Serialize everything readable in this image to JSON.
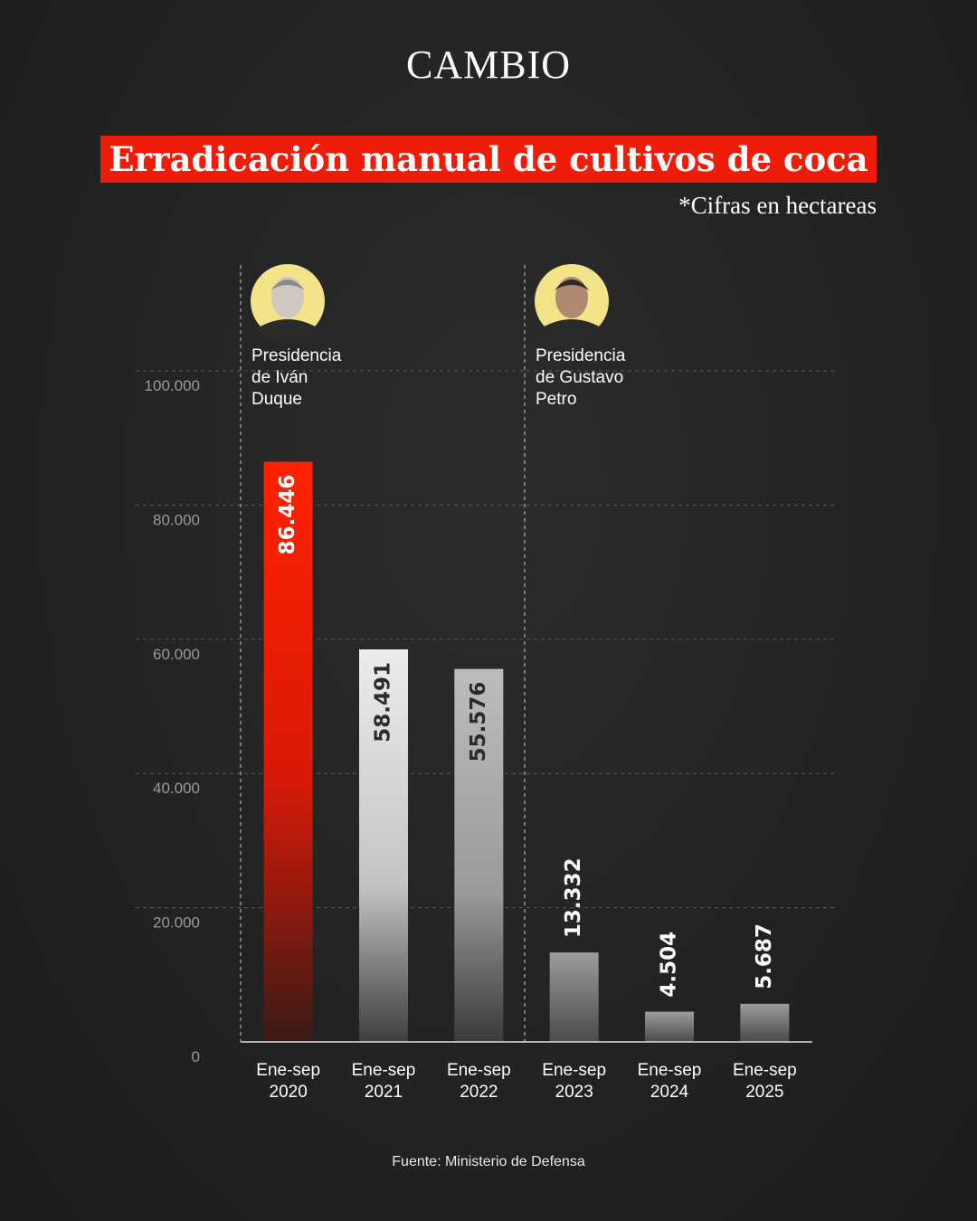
{
  "brand": "CAMBIO",
  "title_banner": "Erradicación manual de cultivos de coca",
  "note": "*Cifras en hectareas",
  "source": "Fuente: Ministerio de Defensa",
  "colors": {
    "accent": "#f01c0a",
    "bar_light": "#e6e6e6",
    "background": "#242424"
  },
  "presidencies": [
    {
      "name_lines": [
        "Presidencia",
        "de Iván",
        "Duque"
      ],
      "starts_at": "Ene-sep 2020",
      "icon": "portrait-ivan-duque"
    },
    {
      "name_lines": [
        "Presidencia",
        "de Gustavo",
        "Petro"
      ],
      "starts_at": "Ene-sep 2023",
      "icon": "portrait-gustavo-petro"
    }
  ],
  "chart_data": {
    "type": "bar",
    "categories": [
      "Ene-sep 2020",
      "Ene-sep 2021",
      "Ene-sep 2022",
      "Ene-sep 2023",
      "Ene-sep 2024",
      "Ene-sep 2025"
    ],
    "category_lines": [
      [
        "Ene-sep",
        "2020"
      ],
      [
        "Ene-sep",
        "2021"
      ],
      [
        "Ene-sep",
        "2022"
      ],
      [
        "Ene-sep",
        "2023"
      ],
      [
        "Ene-sep",
        "2024"
      ],
      [
        "Ene-sep",
        "2025"
      ]
    ],
    "values": [
      86446,
      58491,
      55576,
      13332,
      4504,
      5687
    ],
    "value_labels": [
      "86.446",
      "58.491",
      "55.576",
      "13.332",
      "4.504",
      "5.687"
    ],
    "highlight_index": 0,
    "ylim": [
      0,
      100000
    ],
    "yticks": [
      0,
      20000,
      40000,
      60000,
      80000,
      100000
    ],
    "ytick_labels": [
      "0",
      "20.000",
      "40.000",
      "60.000",
      "80.000",
      "100.000"
    ],
    "grid": true,
    "title": "Erradicación manual de cultivos de coca",
    "xlabel": "",
    "ylabel": ""
  }
}
